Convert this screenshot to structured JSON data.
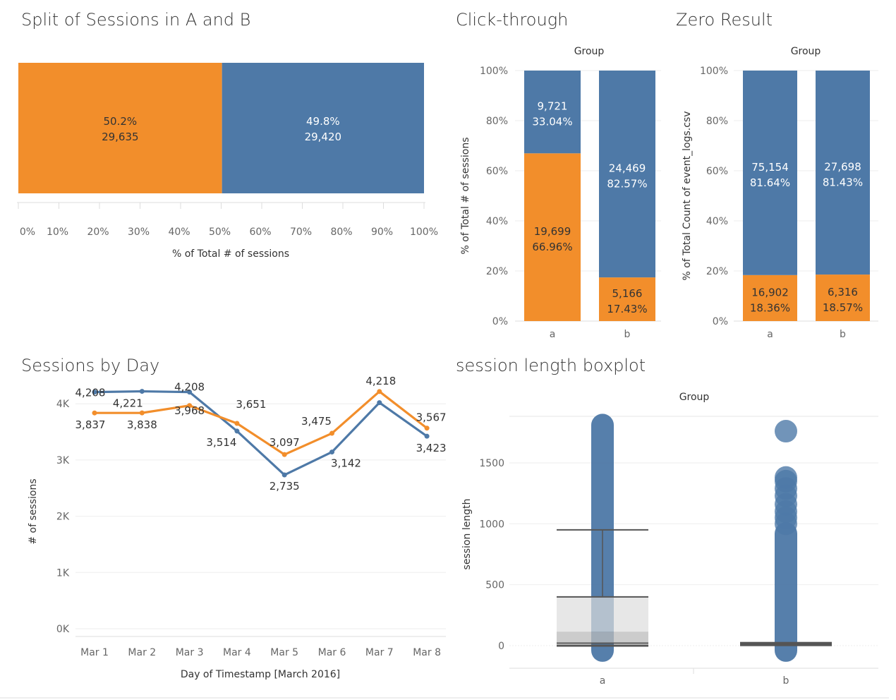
{
  "colors": {
    "a": "#f28e2b",
    "b": "#4e79a7",
    "grid": "#eeeeee",
    "axis": "#dddddd"
  },
  "chart_data": [
    {
      "id": "split",
      "type": "bar",
      "orientation": "horizontal",
      "stacked": true,
      "title": "Split of Sessions in A and B",
      "xlabel": "% of Total # of sessions",
      "xlim": [
        0,
        100
      ],
      "xticks": [
        "0%",
        "10%",
        "20%",
        "30%",
        "40%",
        "50%",
        "60%",
        "70%",
        "80%",
        "90%",
        "100%"
      ],
      "segments": [
        {
          "group": "a",
          "percent": 50.2,
          "count": 29635,
          "percent_label": "50.2%",
          "count_label": "29,635"
        },
        {
          "group": "b",
          "percent": 49.8,
          "count": 29420,
          "percent_label": "49.8%",
          "count_label": "29,420"
        }
      ]
    },
    {
      "id": "clickthrough",
      "type": "bar",
      "stacked": true,
      "title": "Click-through",
      "header": "Group",
      "ylabel": "% of Total # of sessions",
      "ylim": [
        0,
        100
      ],
      "yticks": [
        "0%",
        "20%",
        "40%",
        "60%",
        "80%",
        "100%"
      ],
      "categories": [
        "a",
        "b"
      ],
      "stacks": [
        {
          "category": "a",
          "bottom": {
            "percent": 66.96,
            "count_label": "19,699",
            "percent_label": "66.96%"
          },
          "top": {
            "percent": 33.04,
            "count_label": "9,721",
            "percent_label": "33.04%"
          }
        },
        {
          "category": "b",
          "bottom": {
            "percent": 17.43,
            "count_label": "5,166",
            "percent_label": "17.43%"
          },
          "top": {
            "percent": 82.57,
            "count_label": "24,469",
            "percent_label": "82.57%"
          }
        }
      ]
    },
    {
      "id": "zeroresult",
      "type": "bar",
      "stacked": true,
      "title": "Zero Result",
      "header": "Group",
      "ylabel": "% of Total Count of event_logs.csv",
      "ylim": [
        0,
        100
      ],
      "yticks": [
        "0%",
        "20%",
        "40%",
        "60%",
        "80%",
        "100%"
      ],
      "categories": [
        "a",
        "b"
      ],
      "stacks": [
        {
          "category": "a",
          "bottom": {
            "percent": 18.36,
            "count_label": "16,902",
            "percent_label": "18.36%"
          },
          "top": {
            "percent": 81.64,
            "count_label": "75,154",
            "percent_label": "81.64%"
          }
        },
        {
          "category": "b",
          "bottom": {
            "percent": 18.57,
            "count_label": "6,316",
            "percent_label": "18.57%"
          },
          "top": {
            "percent": 81.43,
            "count_label": "27,698",
            "percent_label": "81.43%"
          }
        }
      ]
    },
    {
      "id": "byday",
      "type": "line",
      "title": "Sessions by Day",
      "xlabel": "Day of Timestamp [March 2016]",
      "ylabel": "# of sessions",
      "ylim": [
        0,
        4500
      ],
      "yticks": [
        {
          "v": 0,
          "label": "0K"
        },
        {
          "v": 1000,
          "label": "1K"
        },
        {
          "v": 2000,
          "label": "2K"
        },
        {
          "v": 3000,
          "label": "3K"
        },
        {
          "v": 4000,
          "label": "4K"
        }
      ],
      "categories": [
        "Mar 1",
        "Mar 2",
        "Mar 3",
        "Mar 4",
        "Mar 5",
        "Mar 6",
        "Mar 7",
        "Mar 8"
      ],
      "series": [
        {
          "group": "b",
          "values": [
            4208,
            4221,
            4208,
            3514,
            2735,
            3142,
            4020,
            3423
          ],
          "labels": [
            "4,208",
            "",
            "4,208",
            "3,514",
            "2,735",
            "3,142",
            "",
            "3,423"
          ]
        },
        {
          "group": "a",
          "values": [
            3837,
            3838,
            3968,
            3651,
            3097,
            3475,
            4218,
            3567
          ],
          "labels": [
            "3,837",
            "3,838",
            "3,968",
            "3,651",
            "3,097",
            "3,475",
            "4,218",
            "3,567"
          ]
        }
      ],
      "extra_labels": [
        {
          "category": "Mar 2",
          "value": 4221,
          "label": "4,221"
        }
      ]
    },
    {
      "id": "boxplot",
      "type": "boxplot",
      "title": "session length boxplot",
      "header": "Group",
      "ylabel": "session length",
      "ylim": [
        -90,
        1900
      ],
      "yticks": [
        {
          "v": 0,
          "label": "0"
        },
        {
          "v": 500,
          "label": "500"
        },
        {
          "v": 1000,
          "label": "1000"
        },
        {
          "v": 1500,
          "label": "1500"
        }
      ],
      "categories": [
        "a",
        "b"
      ],
      "groups": [
        {
          "category": "a",
          "min": 0,
          "q1": 20,
          "median": 115,
          "q3": 400,
          "upper_whisker": 950,
          "dots_range": [
            -40,
            1810
          ]
        },
        {
          "category": "b",
          "min": 0,
          "q1": 0,
          "median": 10,
          "q3": 25,
          "upper_whisker": 25,
          "dots_range": [
            -40,
            920
          ],
          "outliers": [
            1000,
            1050,
            1100,
            1160,
            1230,
            1290,
            1350,
            1380,
            1760
          ]
        }
      ]
    }
  ]
}
